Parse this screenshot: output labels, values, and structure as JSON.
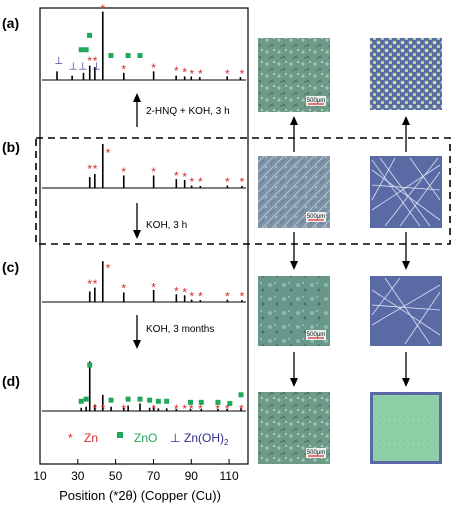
{
  "panels": [
    "(a)",
    "(b)",
    "(c)",
    "(d)"
  ],
  "xaxis": {
    "title": "Position (*2θ) (Copper (Cu))",
    "ticks": [
      "10",
      "30",
      "50",
      "70",
      "90",
      "110"
    ]
  },
  "steps": [
    "2-HNQ + KOH, 3 h",
    "KOH, 3 h",
    "KOH, 3 months"
  ],
  "legend": {
    "zn_symbol": "*",
    "zn_label": "Zn",
    "zno_label": "ZnO",
    "znoh_symbol": "⊥",
    "znoh_label": "Zn(OH)",
    "znoh_sub": "2"
  },
  "scale_bar": "500μm",
  "colors": {
    "zn": "#d62b2b",
    "zno": "#1fa85a",
    "znoh": "#2a2e8c",
    "map_bg": "#5a6aa5",
    "map_green": "#8fd0a8"
  },
  "chart_data": {
    "type": "line",
    "xlim": [
      10,
      120
    ],
    "xlabel": "Position (*2θ) (Copper (Cu))",
    "series": [
      {
        "name": "(a)",
        "peaks": [
          {
            "x": 19,
            "h": 0.12
          },
          {
            "x": 27,
            "h": 0.06
          },
          {
            "x": 33,
            "h": 0.1
          },
          {
            "x": 36.3,
            "h": 0.2
          },
          {
            "x": 39,
            "h": 0.18
          },
          {
            "x": 43.2,
            "h": 0.95
          },
          {
            "x": 54.3,
            "h": 0.1
          },
          {
            "x": 70.1,
            "h": 0.12
          },
          {
            "x": 82,
            "h": 0.06
          },
          {
            "x": 86.5,
            "h": 0.05
          },
          {
            "x": 90,
            "h": 0.05
          },
          {
            "x": 94.5,
            "h": 0.04
          },
          {
            "x": 109,
            "h": 0.05
          },
          {
            "x": 116,
            "h": 0.04
          }
        ]
      },
      {
        "name": "(b)",
        "peaks": [
          {
            "x": 36.3,
            "h": 0.22
          },
          {
            "x": 39,
            "h": 0.28
          },
          {
            "x": 43.2,
            "h": 0.88
          },
          {
            "x": 54.3,
            "h": 0.25
          },
          {
            "x": 70.1,
            "h": 0.25
          },
          {
            "x": 82.1,
            "h": 0.18
          },
          {
            "x": 86.5,
            "h": 0.16
          },
          {
            "x": 90.2,
            "h": 0.05
          },
          {
            "x": 94.8,
            "h": 0.04
          },
          {
            "x": 109.1,
            "h": 0.05
          },
          {
            "x": 116.8,
            "h": 0.04
          }
        ]
      },
      {
        "name": "(c)",
        "peaks": [
          {
            "x": 36.3,
            "h": 0.22
          },
          {
            "x": 39,
            "h": 0.3
          },
          {
            "x": 43.2,
            "h": 0.85
          },
          {
            "x": 54.3,
            "h": 0.2
          },
          {
            "x": 70.1,
            "h": 0.25
          },
          {
            "x": 82.1,
            "h": 0.16
          },
          {
            "x": 86.5,
            "h": 0.14
          },
          {
            "x": 90.2,
            "h": 0.05
          },
          {
            "x": 94.8,
            "h": 0.04
          },
          {
            "x": 109.1,
            "h": 0.05
          },
          {
            "x": 116.8,
            "h": 0.04
          }
        ]
      },
      {
        "name": "(d)",
        "peaks": [
          {
            "x": 31.8,
            "h": 0.06
          },
          {
            "x": 34.4,
            "h": 0.08
          },
          {
            "x": 36.3,
            "h": 0.92
          },
          {
            "x": 39,
            "h": 0.12
          },
          {
            "x": 43.2,
            "h": 0.3
          },
          {
            "x": 47.6,
            "h": 0.08
          },
          {
            "x": 54.3,
            "h": 0.06
          },
          {
            "x": 56.6,
            "h": 0.1
          },
          {
            "x": 62.9,
            "h": 0.14
          },
          {
            "x": 68,
            "h": 0.06
          },
          {
            "x": 70.1,
            "h": 0.08
          },
          {
            "x": 72.6,
            "h": 0.05
          },
          {
            "x": 77,
            "h": 0.05
          },
          {
            "x": 82.1,
            "h": 0.04
          },
          {
            "x": 89.6,
            "h": 0.04
          },
          {
            "x": 95.3,
            "h": 0.04
          },
          {
            "x": 104.1,
            "h": 0.04
          },
          {
            "x": 109,
            "h": 0.04
          },
          {
            "x": 116.3,
            "h": 0.05
          }
        ]
      }
    ],
    "markers": [
      {
        "zn": [
          [
            43.2,
            1.0
          ],
          [
            36.3,
            0.28
          ],
          [
            39.1,
            0.28
          ],
          [
            54.3,
            0.16
          ],
          [
            70.1,
            0.18
          ],
          [
            82.1,
            0.14
          ],
          [
            86.5,
            0.12
          ],
          [
            90.3,
            0.1
          ],
          [
            94.8,
            0.1
          ],
          [
            109.1,
            0.1
          ],
          [
            116.8,
            0.1
          ]
        ],
        "zno": [
          [
            36.2,
            0.62
          ],
          [
            31.8,
            0.42
          ],
          [
            34.4,
            0.42
          ],
          [
            47.5,
            0.34
          ],
          [
            56.6,
            0.34
          ],
          [
            62.9,
            0.34
          ]
        ],
        "znoh": [
          [
            19.9,
            0.28
          ],
          [
            27.5,
            0.2
          ],
          [
            32.6,
            0.2
          ],
          [
            39.8,
            0.2
          ]
        ]
      },
      {
        "zn": [
          [
            46.0,
            0.72
          ],
          [
            36.3,
            0.4
          ],
          [
            39.1,
            0.4
          ],
          [
            54.3,
            0.34
          ],
          [
            70.1,
            0.34
          ],
          [
            82.1,
            0.26
          ],
          [
            86.5,
            0.24
          ],
          [
            90.3,
            0.14
          ],
          [
            94.8,
            0.14
          ],
          [
            109.1,
            0.14
          ],
          [
            116.8,
            0.14
          ]
        ],
        "zno": [],
        "znoh": []
      },
      {
        "zn": [
          [
            46.0,
            0.72
          ],
          [
            36.3,
            0.4
          ],
          [
            39.1,
            0.4
          ],
          [
            54.3,
            0.3
          ],
          [
            70.1,
            0.32
          ],
          [
            82.1,
            0.24
          ],
          [
            86.5,
            0.22
          ],
          [
            90.3,
            0.14
          ],
          [
            94.8,
            0.14
          ],
          [
            109.1,
            0.14
          ],
          [
            116.8,
            0.14
          ]
        ],
        "zno": [],
        "znoh": []
      },
      {
        "zn": [
          [
            39.0,
            0.06
          ],
          [
            43.3,
            0.06
          ],
          [
            54.3,
            0.06
          ],
          [
            70.2,
            0.06
          ],
          [
            82.1,
            0.06
          ],
          [
            86.5,
            0.06
          ],
          [
            90.0,
            0.06
          ],
          [
            94.8,
            0.06
          ],
          [
            104.0,
            0.06
          ],
          [
            109.0,
            0.06
          ],
          [
            116.5,
            0.06
          ]
        ],
        "zno": [
          [
            36.3,
            0.85
          ],
          [
            31.8,
            0.18
          ],
          [
            34.4,
            0.22
          ],
          [
            47.6,
            0.2
          ],
          [
            56.6,
            0.22
          ],
          [
            62.9,
            0.22
          ],
          [
            68.0,
            0.2
          ],
          [
            72.6,
            0.18
          ],
          [
            77.0,
            0.18
          ],
          [
            89.6,
            0.16
          ],
          [
            95.3,
            0.16
          ],
          [
            104.1,
            0.16
          ],
          [
            110.4,
            0.14
          ],
          [
            116.3,
            0.3
          ]
        ],
        "znoh": []
      }
    ]
  }
}
